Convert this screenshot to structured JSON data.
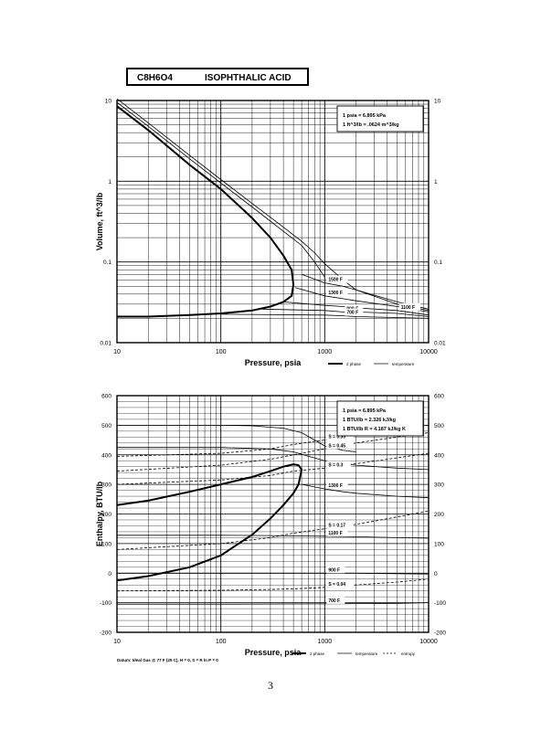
{
  "header": {
    "formula": "C8H6O4",
    "name": "ISOPHTHALIC ACID"
  },
  "page_number": "3",
  "chart_data": [
    {
      "type": "line",
      "x_scale": "log",
      "y_scale": "log",
      "xlabel": "Pressure,  psia",
      "ylabel": "Volume, ft^3/lb",
      "xlim": [
        10,
        10000
      ],
      "ylim": [
        0.01,
        10
      ],
      "x_ticks": [
        "10",
        "100",
        "1000",
        "10000"
      ],
      "y_ticks": [
        "0.01",
        "0.1",
        "1",
        "10"
      ],
      "grid": true,
      "note": [
        "1 psia = 6.895 kPa",
        "1 ft^3/lb = .0624 m^3/kg"
      ],
      "legend": [
        {
          "label": "2 phase",
          "style": "thick"
        },
        {
          "label": "temperature",
          "style": "thin"
        }
      ],
      "series": [
        {
          "name": "2 phase",
          "x": [
            10,
            20,
            50,
            100,
            200,
            300,
            400,
            480,
            500,
            480,
            400,
            300,
            200,
            100,
            50,
            20,
            10
          ],
          "y": [
            8.5,
            4.3,
            1.6,
            0.8,
            0.35,
            0.2,
            0.12,
            0.08,
            0.052,
            0.038,
            0.032,
            0.028,
            0.025,
            0.023,
            0.022,
            0.021,
            0.021
          ]
        },
        {
          "x": [
            10,
            20,
            50,
            100,
            200,
            400,
            600,
            800,
            1000
          ],
          "y": [
            9.5,
            4.8,
            1.9,
            0.95,
            0.48,
            0.24,
            0.16,
            0.1,
            0.065
          ]
        },
        {
          "x": [
            10,
            20,
            50,
            100,
            200,
            400,
            600,
            800,
            1000,
            1500,
            2000,
            5000,
            10000
          ],
          "y": [
            10.5,
            5.3,
            2.1,
            1.05,
            0.53,
            0.27,
            0.18,
            0.13,
            0.095,
            0.06,
            0.045,
            0.03,
            0.025
          ]
        },
        {
          "name": "1500 F",
          "x": [
            600,
            1000,
            1500,
            2000,
            5000,
            10000
          ],
          "y": [
            0.07,
            0.055,
            0.05,
            0.045,
            0.032,
            0.026
          ]
        },
        {
          "name": "1300 F",
          "x": [
            520,
            1000,
            1500,
            2000,
            5000,
            10000
          ],
          "y": [
            0.048,
            0.038,
            0.035,
            0.033,
            0.028,
            0.024
          ]
        },
        {
          "name": "1100 F",
          "x": [
            400,
            1000,
            1500,
            2000,
            5000,
            10000
          ],
          "y": [
            0.032,
            0.029,
            0.028,
            0.027,
            0.025,
            0.022
          ]
        },
        {
          "name": "900 F",
          "x": [
            250,
            1000,
            1500,
            2000,
            5000,
            10000
          ],
          "y": [
            0.026,
            0.025,
            0.024,
            0.024,
            0.023,
            0.021
          ]
        },
        {
          "name": "700 F",
          "x": [
            100,
            1000,
            1500,
            2000,
            5000,
            10000
          ],
          "y": [
            0.0225,
            0.022,
            0.0215,
            0.021,
            0.0205,
            0.02
          ]
        }
      ]
    },
    {
      "type": "line",
      "x_scale": "log",
      "y_scale": "linear",
      "xlabel": "Pressure,  psia",
      "ylabel": "Enthalpy, BTU/lb",
      "xlim": [
        10,
        10000
      ],
      "ylim": [
        -200,
        600
      ],
      "x_ticks": [
        "10",
        "100",
        "1000",
        "10000"
      ],
      "y_ticks": [
        "-200",
        "-100",
        "0",
        "100",
        "200",
        "300",
        "400",
        "500",
        "600"
      ],
      "grid": true,
      "note": [
        "1 psia = 6.895 kPa",
        "1 BTU/lb = 2.326 kJ/kg",
        "1 BTU/lb R = 4.187 kJ/kg K"
      ],
      "legend": [
        {
          "label": "2 phase",
          "style": "thick"
        },
        {
          "label": "temperature",
          "style": "thin"
        },
        {
          "label": "entropy",
          "style": "dashed"
        }
      ],
      "footnote": "Datum: Ideal Gas @ 77 F (25 C),  H = 0,  S = R ln P = 0",
      "series": [
        {
          "name": "2 phase",
          "x": [
            10,
            20,
            50,
            100,
            200,
            300,
            400,
            500,
            560,
            600,
            560,
            500,
            400,
            300,
            200,
            100,
            50,
            20,
            10
          ],
          "y": [
            230,
            245,
            275,
            300,
            325,
            345,
            360,
            368,
            365,
            350,
            300,
            270,
            230,
            185,
            130,
            60,
            20,
            -10,
            -25
          ]
        },
        {
          "x": [
            10,
            100,
            200,
            400,
            600,
            800,
            1000,
            1500,
            2000
          ],
          "y": [
            500,
            500,
            498,
            490,
            475,
            450,
            430,
            415,
            410
          ]
        },
        {
          "x": [
            10,
            100,
            300,
            500,
            700,
            1000,
            1500,
            2000,
            5000,
            10000
          ],
          "y": [
            425,
            425,
            420,
            410,
            395,
            380,
            370,
            365,
            355,
            350
          ]
        },
        {
          "name": "1300 F",
          "x": [
            600,
            1000,
            1500,
            2000,
            5000,
            10000
          ],
          "y": [
            300,
            285,
            275,
            270,
            260,
            255
          ]
        },
        {
          "name": "1100 F",
          "x": [
            10,
            100,
            300,
            500,
            1000,
            2000,
            5000,
            10000
          ],
          "y": [
            128,
            128,
            127,
            126,
            125,
            123,
            120,
            118
          ]
        },
        {
          "name": "900 F",
          "x": [
            10,
            100,
            1000,
            2000,
            5000,
            10000
          ],
          "y": [
            0,
            0,
            0,
            0,
            -2,
            -3
          ]
        },
        {
          "name": "700 F",
          "x": [
            10,
            100,
            1000,
            2000,
            5000,
            10000
          ],
          "y": [
            -105,
            -105,
            -104,
            -103,
            -102,
            -100
          ]
        },
        {
          "name": "S = 0.35",
          "x": [
            10,
            100,
            300,
            500,
            1000,
            2000,
            5000,
            10000
          ],
          "y": [
            395,
            405,
            420,
            435,
            450,
            470,
            490,
            500
          ]
        },
        {
          "name": "S = 0.45",
          "x": [
            10,
            100,
            300,
            500,
            1000,
            2000,
            5000,
            10000
          ],
          "y": [
            345,
            365,
            385,
            400,
            420,
            440,
            460,
            475
          ]
        },
        {
          "name": "S = 0.3",
          "x": [
            10,
            100,
            300,
            500,
            1000,
            2000,
            5000,
            10000
          ],
          "y": [
            300,
            315,
            330,
            345,
            355,
            370,
            390,
            405
          ]
        },
        {
          "name": "S = 0.17",
          "x": [
            10,
            100,
            300,
            500,
            1000,
            2000,
            5000,
            10000
          ],
          "y": [
            80,
            100,
            120,
            135,
            150,
            165,
            190,
            210
          ]
        },
        {
          "name": "S = 0.04",
          "x": [
            10,
            100,
            300,
            600,
            1000,
            2000,
            5000,
            10000
          ],
          "y": [
            -60,
            -58,
            -55,
            -52,
            -48,
            -40,
            -30,
            -20
          ]
        }
      ]
    }
  ]
}
